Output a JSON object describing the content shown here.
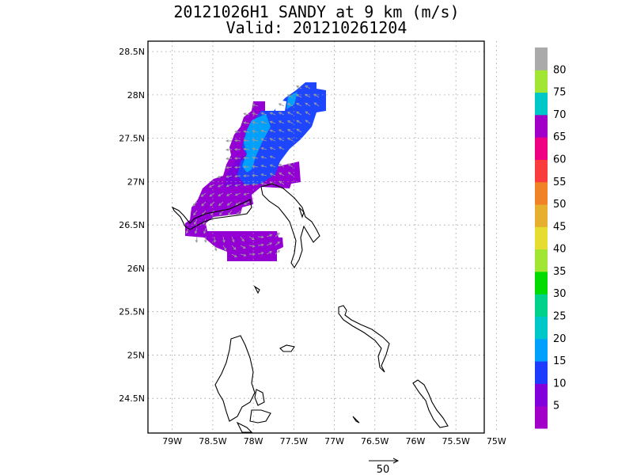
{
  "title": {
    "line1": "20121026H1 SANDY at 9 km (m/s)",
    "line2": "Valid: 201210261204"
  },
  "map": {
    "lat_labels": [
      "28.5N",
      "28N",
      "27.5N",
      "27N",
      "26.5N",
      "26N",
      "25.5N",
      "25N",
      "24.5N"
    ],
    "lat_values": [
      28.5,
      28.0,
      27.5,
      27.0,
      26.5,
      26.0,
      25.5,
      25.0,
      24.5
    ],
    "lon_labels": [
      "79W",
      "78.5W",
      "78W",
      "77.5W",
      "77W",
      "76.5W",
      "76W",
      "75.5W",
      "75W"
    ],
    "lon_values": [
      -79.0,
      -78.5,
      -78.0,
      -77.5,
      -77.0,
      -76.5,
      -76.0,
      -75.5,
      -75.0
    ],
    "lat_range": [
      24.1,
      28.62
    ],
    "lon_range": [
      -79.3,
      -75.15
    ],
    "grid": "dotted"
  },
  "colorbar": {
    "labels": [
      "5",
      "10",
      "15",
      "20",
      "25",
      "30",
      "35",
      "40",
      "45",
      "50",
      "55",
      "60",
      "65",
      "70",
      "75",
      "80"
    ],
    "colors": [
      "#a000c8",
      "#8200dc",
      "#1e3cff",
      "#00a0ff",
      "#00c8c8",
      "#00d28c",
      "#00dc00",
      "#a0e632",
      "#e6dc32",
      "#e6af2d",
      "#f08228",
      "#fa3c3c",
      "#f00082",
      "#a000c8",
      "#00c8c8",
      "#a0e632",
      "#aaaaaa"
    ]
  },
  "vector_scale": {
    "label": "50"
  },
  "colors": {
    "wind_5_10": "#9400d3",
    "wind_10_15": "#7b00dc",
    "wind_15_20": "#1e46ff",
    "wind_20_25": "#00a0ff",
    "coastline": "#000000",
    "vector": "#9a9a9a"
  }
}
